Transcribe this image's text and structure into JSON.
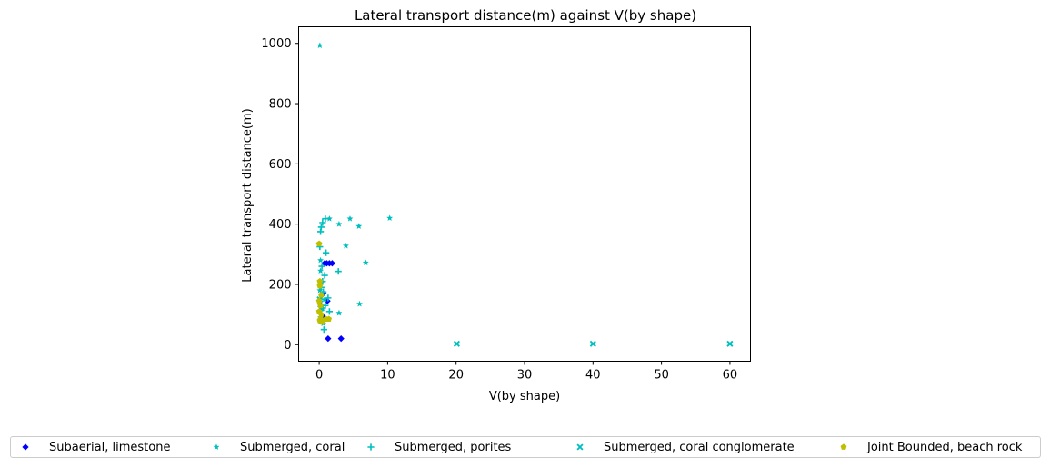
{
  "chart_data": {
    "type": "scatter",
    "title": "Lateral transport distance(m) against V(by shape)",
    "xlabel": "V(by shape)",
    "ylabel": "Lateral transport distance(m)",
    "xlim": [
      -3,
      63
    ],
    "ylim": [
      -55,
      1055
    ],
    "xticks": [
      0,
      10,
      20,
      30,
      40,
      50,
      60
    ],
    "yticks": [
      0,
      200,
      400,
      600,
      800,
      1000
    ],
    "grid": false,
    "legend_position": "bottom",
    "series": [
      {
        "name": "Subaerial, limestone",
        "marker": "diamond",
        "color": "#0000ff",
        "points": [
          [
            0.8,
            270
          ],
          [
            1.1,
            270
          ],
          [
            1.5,
            270
          ],
          [
            1.9,
            270
          ],
          [
            0.6,
            170
          ],
          [
            1.2,
            145
          ],
          [
            1.3,
            20
          ],
          [
            3.2,
            20
          ],
          [
            0.3,
            130
          ],
          [
            0.5,
            95
          ]
        ]
      },
      {
        "name": "Submerged, coral",
        "marker": "star",
        "color": "#00bfbf",
        "points": [
          [
            0.1,
            993
          ],
          [
            10.3,
            420
          ],
          [
            4.5,
            418
          ],
          [
            1.5,
            418
          ],
          [
            2.9,
            400
          ],
          [
            5.8,
            393
          ],
          [
            3.9,
            328
          ],
          [
            6.8,
            272
          ],
          [
            0.2,
            245
          ],
          [
            0.3,
            205
          ],
          [
            0.4,
            165
          ],
          [
            0.5,
            120
          ],
          [
            5.9,
            135
          ],
          [
            2.9,
            105
          ],
          [
            0.2,
            90
          ],
          [
            0.6,
            70
          ],
          [
            0.1,
            180
          ],
          [
            0.8,
            150
          ],
          [
            0.2,
            280
          ]
        ]
      },
      {
        "name": "Submerged, porites",
        "marker": "plus",
        "color": "#00bfbf",
        "points": [
          [
            0.3,
            390
          ],
          [
            0.2,
            375
          ],
          [
            0.1,
            325
          ],
          [
            0.5,
            405
          ],
          [
            0.9,
            418
          ],
          [
            1.0,
            305
          ],
          [
            2.8,
            243
          ],
          [
            0.4,
            260
          ],
          [
            0.8,
            230
          ],
          [
            0.5,
            210
          ],
          [
            0.3,
            190
          ],
          [
            1.3,
            155
          ],
          [
            0.9,
            130
          ],
          [
            1.5,
            110
          ],
          [
            0.7,
            50
          ],
          [
            0.2,
            150
          ],
          [
            0.6,
            175
          ]
        ]
      },
      {
        "name": "Submerged, coral conglomerate",
        "marker": "x",
        "color": "#00bfbf",
        "points": [
          [
            20.1,
            3
          ],
          [
            40.0,
            3
          ],
          [
            60.0,
            3
          ],
          [
            0.1,
            150
          ],
          [
            0.2,
            120
          ],
          [
            0.3,
            80
          ]
        ]
      },
      {
        "name": "Joint Bounded, beach rock",
        "marker": "pentagon",
        "color": "#bfbf00",
        "points": [
          [
            0.0,
            335
          ],
          [
            0.1,
            210
          ],
          [
            0.1,
            195
          ],
          [
            0.3,
            165
          ],
          [
            0.0,
            145
          ],
          [
            0.2,
            130
          ],
          [
            0.0,
            110
          ],
          [
            0.3,
            100
          ],
          [
            0.2,
            85
          ],
          [
            0.1,
            80
          ],
          [
            0.4,
            75
          ],
          [
            1.0,
            85
          ],
          [
            1.4,
            85
          ]
        ]
      }
    ]
  }
}
